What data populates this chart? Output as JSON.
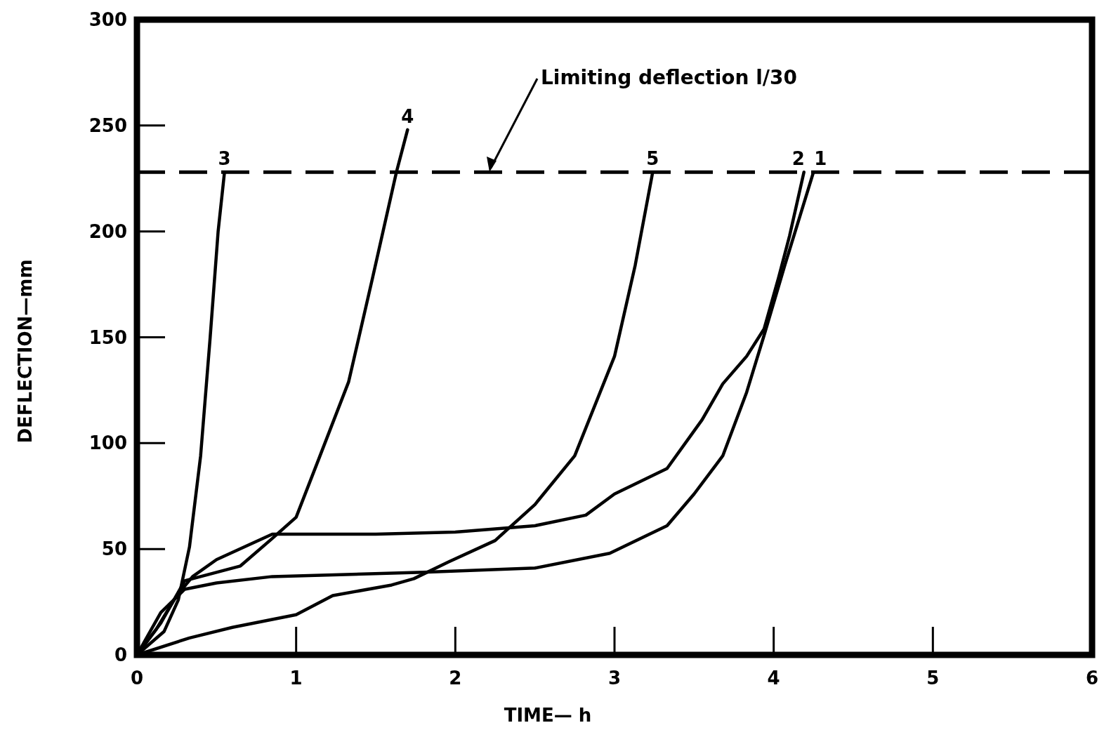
{
  "chart_data": {
    "type": "line",
    "xlabel": "TIME— h",
    "ylabel": "DEFLECTION—mm",
    "xlim": [
      0,
      6
    ],
    "ylim": [
      0,
      300
    ],
    "xticks": [
      0,
      1,
      2,
      3,
      4,
      5,
      6
    ],
    "yticks": [
      0,
      50,
      100,
      150,
      200,
      250,
      300
    ],
    "grid": false,
    "marker": "none",
    "line_style": "solid",
    "series": [
      {
        "name": "1",
        "color": "#000000",
        "x": [
          0,
          0.15,
          0.3,
          0.5,
          0.85,
          1.8,
          2.5,
          2.97,
          3.33,
          3.5,
          3.68,
          3.83,
          3.94,
          4.07,
          4.25
        ],
        "values": [
          0,
          20,
          31,
          34,
          37,
          39,
          41,
          48,
          61,
          76,
          94,
          124,
          151,
          184,
          228
        ]
      },
      {
        "name": "2",
        "color": "#000000",
        "x": [
          0,
          0.12,
          0.25,
          0.35,
          0.5,
          0.85,
          1.5,
          2.0,
          2.5,
          2.82,
          3.0,
          3.33,
          3.55,
          3.68,
          3.83,
          3.94,
          4.03,
          4.1,
          4.19
        ],
        "values": [
          0,
          12,
          28,
          37,
          45,
          57,
          57,
          58,
          61,
          66,
          76,
          88,
          111,
          128,
          141,
          154,
          178,
          198,
          228
        ]
      },
      {
        "name": "3",
        "color": "#000000",
        "x": [
          0,
          0.17,
          0.26,
          0.33,
          0.4,
          0.46,
          0.51,
          0.55
        ],
        "values": [
          0,
          11,
          26,
          51,
          94,
          150,
          200,
          228
        ]
      },
      {
        "name": "4",
        "color": "#000000",
        "x": [
          0,
          0.15,
          0.3,
          0.45,
          0.65,
          0.85,
          1.0,
          1.15,
          1.33,
          1.48,
          1.63,
          1.7
        ],
        "values": [
          0,
          15,
          35,
          38,
          42,
          55,
          65,
          94,
          129,
          178,
          228,
          248
        ]
      },
      {
        "name": "5",
        "color": "#000000",
        "x": [
          0,
          0.33,
          0.6,
          1.0,
          1.23,
          1.6,
          1.74,
          1.96,
          2.25,
          2.5,
          2.75,
          3.0,
          3.13,
          3.24
        ],
        "values": [
          0,
          8,
          13,
          19,
          28,
          33,
          36,
          44,
          54,
          71,
          94,
          141,
          184,
          228
        ]
      }
    ],
    "ref_lines": [
      {
        "axis": "y",
        "value": 228,
        "line_style": "dashed",
        "color": "#000000"
      }
    ],
    "annotations": [
      "Limiting deflection  l/30"
    ]
  }
}
